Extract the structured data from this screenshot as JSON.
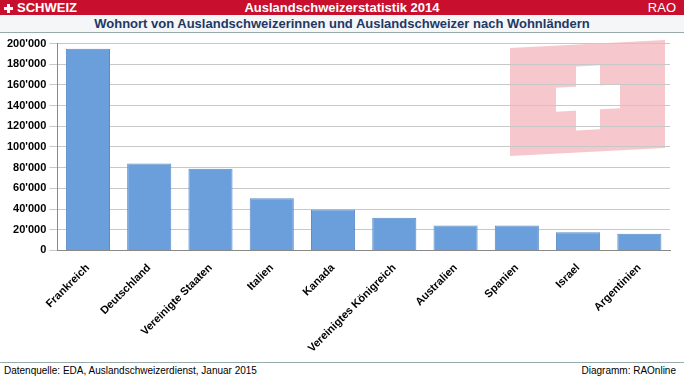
{
  "header": {
    "left": "SCHWEIZ",
    "right": "RAO"
  },
  "chart_data": {
    "type": "bar",
    "title": "Auslandschweizerstatistik 2014",
    "subtitle": "Wohnort von Auslandschweizerinnen und Auslandschweizer nach Wohnländern",
    "categories": [
      "Frankreich",
      "Deutschland",
      "Vereinigte Staaten",
      "Italien",
      "Kanada",
      "Vereinigtes Königreich",
      "Australien",
      "Spanien",
      "Israel",
      "Argentinien"
    ],
    "values": [
      195000,
      84000,
      79000,
      50500,
      39500,
      31500,
      24000,
      24000,
      17500,
      16000
    ],
    "color": "#6a9fdc",
    "ylim": [
      0,
      200000
    ],
    "yticks": [
      0,
      {
        "value": 20000,
        "label": "20'000"
      },
      {
        "value": 40000,
        "label": "40'000"
      },
      {
        "value": 60000,
        "label": "60'000"
      },
      {
        "value": 80000,
        "label": "80'000"
      },
      {
        "value": 100000,
        "label": "100'000"
      },
      {
        "value": 120000,
        "label": "120'000"
      },
      {
        "value": 140000,
        "label": "140'000"
      },
      {
        "value": 160000,
        "label": "160'000"
      },
      {
        "value": 180000,
        "label": "180'000"
      },
      {
        "value": 200000,
        "label": "200'000"
      }
    ],
    "grid": true
  },
  "footer": {
    "source": "Datenquelle: EDA, Auslandschweizerdienst,  Januar 2015",
    "credit": "Diagramm: RAOnline"
  }
}
